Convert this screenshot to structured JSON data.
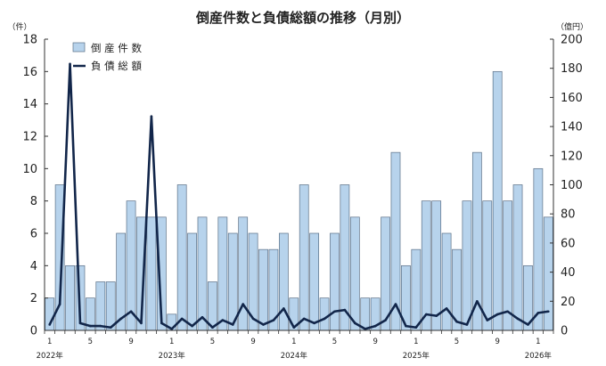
{
  "chart_data": {
    "type": "bar",
    "title": "倒産件数と負債総額の推移（月別）",
    "left_unit": "（件）",
    "right_unit": "（億円）",
    "ylim_left": [
      0,
      18
    ],
    "ylim_right": [
      0,
      200
    ],
    "yticks_left": [
      0,
      2,
      4,
      6,
      8,
      10,
      12,
      14,
      16,
      18
    ],
    "yticks_right": [
      0,
      20,
      40,
      60,
      80,
      100,
      120,
      140,
      160,
      180,
      200
    ],
    "grid": false,
    "legend_position": "top-left",
    "month_tick_labels": [
      "1",
      "5",
      "9",
      "1",
      "5",
      "9",
      "1",
      "5",
      "9",
      "1",
      "5",
      "9",
      "1"
    ],
    "year_labels": [
      "2022年",
      "2023年",
      "2024年",
      "2025年",
      "2026年"
    ],
    "series": [
      {
        "name": "倒 産 件 数",
        "kind": "bar",
        "axis": "left",
        "color": "#b7d3ec",
        "values": [
          2,
          9,
          4,
          4,
          2,
          3,
          3,
          6,
          8,
          7,
          7,
          7,
          1,
          9,
          6,
          7,
          3,
          7,
          6,
          7,
          6,
          5,
          5,
          6,
          2,
          9,
          6,
          2,
          6,
          9,
          7,
          2,
          2,
          7,
          11,
          4,
          5,
          8,
          8,
          6,
          5,
          8,
          11,
          8,
          16,
          8,
          9,
          4,
          10,
          7
        ]
      },
      {
        "name": "負 債 総 額",
        "kind": "line",
        "axis": "right",
        "color": "#12264a",
        "values": [
          4,
          18,
          183,
          5,
          3,
          3,
          2,
          8,
          13,
          5,
          147,
          5,
          1,
          8,
          3,
          9,
          2,
          7,
          4,
          18,
          8,
          4,
          7,
          15,
          2,
          8,
          5,
          8,
          13,
          14,
          5,
          1,
          3,
          7,
          18,
          3,
          2,
          11,
          10,
          15,
          6,
          4,
          20,
          7,
          11,
          13,
          8,
          4,
          12,
          13
        ]
      }
    ]
  }
}
